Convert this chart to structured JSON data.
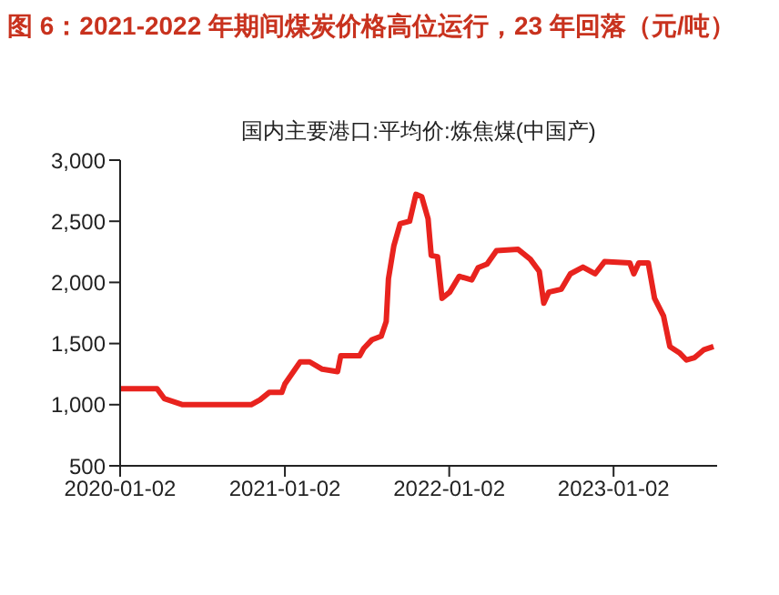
{
  "chart_data": {
    "type": "line",
    "title": "图 6：2021-2022 年期间煤炭价格高位运行，23 年回落（元/吨）",
    "subtitle": "国内主要港口:平均价:炼焦煤(中国产)",
    "x": [
      "2020-01-02",
      "2020-03-24",
      "2020-04-09",
      "2020-05-20",
      "2020-10-19",
      "2020-11-08",
      "2020-11-28",
      "2020-12-26",
      "2021-01-02",
      "2021-02-05",
      "2021-02-26",
      "2021-03-26",
      "2021-04-29",
      "2021-05-06",
      "2021-06-17",
      "2021-06-26",
      "2021-07-14",
      "2021-08-04",
      "2021-08-15",
      "2021-08-20",
      "2021-09-01",
      "2021-09-15",
      "2021-10-06",
      "2021-10-20",
      "2021-11-02",
      "2021-11-16",
      "2021-11-23",
      "2021-12-07",
      "2021-12-17",
      "2022-01-03",
      "2022-01-24",
      "2022-02-21",
      "2022-03-07",
      "2022-03-27",
      "2022-04-17",
      "2022-06-04",
      "2022-07-01",
      "2022-07-21",
      "2022-07-31",
      "2022-08-11",
      "2022-09-08",
      "2022-09-28",
      "2022-10-26",
      "2022-11-22",
      "2022-12-13",
      "2023-02-07",
      "2023-02-16",
      "2023-02-27",
      "2023-03-20",
      "2023-04-03",
      "2023-04-23",
      "2023-05-07",
      "2023-05-28",
      "2023-06-13",
      "2023-07-01",
      "2023-07-22",
      "2023-08-12"
    ],
    "series": [
      {
        "color": "#e8231e",
        "values": [
          1130,
          1130,
          1050,
          1000,
          1000,
          1040,
          1100,
          1100,
          1170,
          1350,
          1350,
          1290,
          1270,
          1400,
          1400,
          1460,
          1530,
          1560,
          1680,
          2030,
          2300,
          2480,
          2500,
          2720,
          2700,
          2520,
          2220,
          2210,
          1870,
          1920,
          2050,
          2020,
          2120,
          2150,
          2260,
          2270,
          2190,
          2090,
          1830,
          1920,
          1945,
          2070,
          2125,
          2070,
          2170,
          2160,
          2070,
          2160,
          2160,
          1870,
          1725,
          1475,
          1425,
          1365,
          1385,
          1450,
          1475
        ]
      }
    ],
    "xlim": [
      "2020-01-02",
      "2023-08-20"
    ],
    "xticks": [
      "2020-01-02",
      "2021-01-02",
      "2022-01-02",
      "2023-01-02"
    ],
    "ylim": [
      500,
      3000
    ],
    "yticks": [
      500,
      {
        "value": 1000,
        "label": "1,000"
      },
      {
        "value": 1500,
        "label": "1,500"
      },
      {
        "value": 2000,
        "label": "2,000"
      },
      {
        "value": 2500,
        "label": "2,500"
      },
      {
        "value": 3000,
        "label": "3,000"
      }
    ],
    "marker": "none",
    "line_style": "solid"
  }
}
